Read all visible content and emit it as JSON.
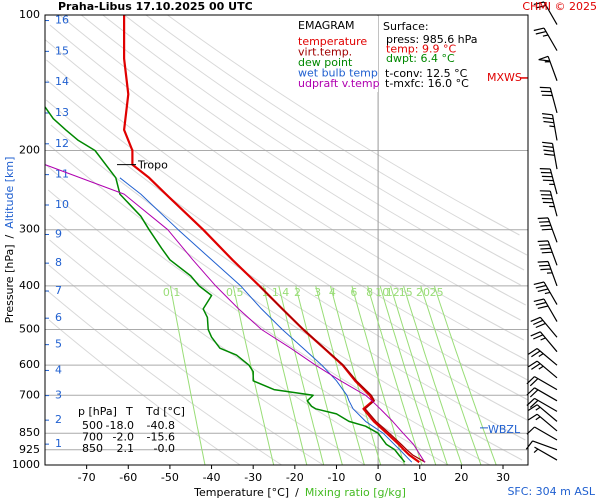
{
  "chart_data": {
    "type": "emagram",
    "title": "Praha-Libus   17.10.2025 00 UTC",
    "copyright": "CHMI © 2025",
    "x_label": "Temperature [°C]",
    "x_label_sep": "/",
    "x_label2": "Mixing ratio [g/kg]",
    "y_label": "Pressure [hPa]",
    "y_label_sep": "/",
    "y_label2": "Altitude [km]",
    "xlim": [
      -80,
      36
    ],
    "xticks": [
      -70,
      -60,
      -50,
      -40,
      -30,
      -20,
      -10,
      0,
      10,
      20,
      30
    ],
    "ylim": [
      1000,
      100
    ],
    "yticks": [
      100,
      200,
      300,
      400,
      500,
      600,
      700,
      850,
      925,
      1000
    ],
    "log_scale_y": true,
    "altitude_ticks": [
      1,
      2,
      3,
      4,
      5,
      6,
      7,
      8,
      9,
      10,
      11,
      12,
      13,
      14,
      15,
      16
    ],
    "legend_title": "EMAGRAM",
    "series": [
      {
        "name": "temperature",
        "color": "#e00000",
        "width": 2.2,
        "pressure": [
          985.6,
          950,
          925,
          900,
          850,
          800,
          750,
          720,
          700,
          650,
          600,
          550,
          500,
          450,
          400,
          350,
          300,
          250,
          230,
          215,
          200,
          180,
          150,
          125,
          100
        ],
        "values": [
          9.9,
          7.5,
          6.2,
          5,
          2.1,
          -1,
          -3.5,
          -1.2,
          -2,
          -5.5,
          -8.5,
          -13,
          -18,
          -23,
          -28.5,
          -35,
          -42,
          -51,
          -55,
          -59,
          -59,
          -61,
          -60,
          -61,
          -61
        ]
      },
      {
        "name": "virt.temp.",
        "color": "#a00000",
        "width": 1.2,
        "pressure": [
          985.6,
          950,
          925,
          900,
          850,
          800,
          750,
          720,
          700,
          650,
          600,
          550,
          500,
          450,
          400
        ],
        "values": [
          11.3,
          8.3,
          6.9,
          5.6,
          2.7,
          -0.5,
          -3.1,
          -0.9,
          -1.6,
          -5.2,
          -8.3,
          -12.9,
          -17.9,
          -23,
          -28.5
        ]
      },
      {
        "name": "dew point",
        "color": "#008800",
        "width": 1.5,
        "pressure": [
          985.6,
          950,
          925,
          900,
          850,
          820,
          800,
          770,
          750,
          740,
          720,
          700,
          680,
          650,
          620,
          600,
          570,
          550,
          520,
          500,
          470,
          450,
          420,
          400,
          380,
          350,
          330,
          300,
          280,
          250,
          230,
          200,
          190,
          180,
          170,
          160
        ],
        "values": [
          6.4,
          5,
          4,
          2,
          0,
          -3,
          -7,
          -10,
          -15,
          -16,
          -17,
          -15.6,
          -25,
          -30,
          -30,
          -31,
          -34,
          -38,
          -40,
          -40.8,
          -41,
          -42,
          -40,
          -43,
          -45,
          -50,
          -52,
          -55,
          -57,
          -62,
          -63,
          -68,
          -72,
          -75,
          -78,
          -80
        ]
      },
      {
        "name": "wet bulb temp.",
        "color": "#2060d0",
        "width": 1,
        "pressure": [
          985.6,
          925,
          850,
          800,
          750,
          720,
          700,
          650,
          600,
          550,
          500,
          450,
          400,
          350,
          300,
          250,
          230
        ],
        "values": [
          8.1,
          5.2,
          1.2,
          -3,
          -6,
          -7,
          -7.5,
          -10,
          -13.5,
          -18,
          -23,
          -28,
          -33,
          -40,
          -48,
          -57,
          -62
        ]
      },
      {
        "name": "udpraft v.temp.",
        "color": "#b000b0",
        "width": 1,
        "pressure": [
          985.6,
          900,
          850,
          800,
          750,
          720,
          700,
          650,
          600,
          550,
          500,
          450,
          400,
          350,
          300,
          250,
          215
        ],
        "values": [
          11.2,
          8.5,
          6,
          3.5,
          0.5,
          -1.5,
          -3,
          -9,
          -15,
          -21,
          -28,
          -33.5,
          -39,
          -44.5,
          -50.5,
          -61,
          -80
        ]
      }
    ],
    "mixing_ratios": [
      0.1,
      0.5,
      1,
      1.4,
      2,
      3,
      4,
      6,
      8,
      10,
      12,
      15,
      20,
      25
    ],
    "mixing_color": "#99dd77",
    "surface": {
      "title": "Surface:",
      "lines": [
        {
          "text": "press: 985.6 hPa",
          "color": "#000000"
        },
        {
          "text": "temp: 9.9 °C",
          "color": "#e00000"
        },
        {
          "text": "dwpt: 6.4 °C",
          "color": "#008800"
        },
        {
          "text": "t-conv: 12.5 °C",
          "color": "#000000"
        },
        {
          "text": "t-mxfc: 16.0 °C",
          "color": "#000000"
        }
      ]
    },
    "table": {
      "header": [
        "p [hPa]",
        "T",
        "Td [°C]"
      ],
      "rows": [
        [
          "500",
          "-18.0",
          "-40.8"
        ],
        [
          "700",
          "-2.0",
          "-15.6"
        ],
        [
          "850",
          "2.1",
          "-0.0"
        ]
      ]
    },
    "tropopause": {
      "label": "Tropo",
      "pressure": 215
    },
    "mxws": {
      "label": "MXWS",
      "pressure": 138
    },
    "wbzl": {
      "label": "WBZL",
      "pressure": 827
    },
    "sfc_note": "SFC: 304 m ASL",
    "winds": {
      "pressure": [
        975,
        925,
        880,
        840,
        800,
        760,
        720,
        680,
        640,
        600,
        560,
        520,
        480,
        440,
        400,
        360,
        320,
        280,
        250,
        220,
        190,
        165,
        140,
        120,
        105
      ],
      "direction": [
        300,
        290,
        300,
        310,
        310,
        300,
        300,
        300,
        310,
        310,
        320,
        320,
        330,
        330,
        340,
        340,
        340,
        345,
        345,
        350,
        350,
        345,
        340,
        330,
        330
      ],
      "speed": [
        5,
        10,
        10,
        15,
        15,
        20,
        20,
        20,
        25,
        25,
        25,
        30,
        30,
        35,
        35,
        40,
        40,
        45,
        45,
        40,
        35,
        30,
        55,
        25,
        20
      ]
    }
  }
}
